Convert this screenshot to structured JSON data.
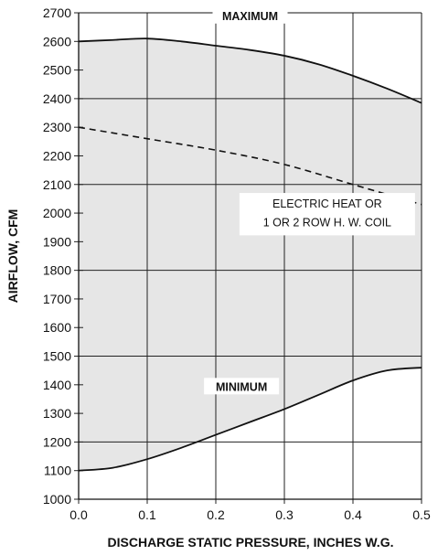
{
  "chart_data": {
    "type": "area",
    "title": "",
    "xlabel": "DISCHARGE STATIC PRESSURE, INCHES W.G.",
    "ylabel": "AIRFLOW, CFM",
    "xlim": [
      0,
      0.5
    ],
    "ylim": [
      1000,
      2700
    ],
    "grid": true,
    "x_ticks": [
      "0.0",
      "0.1",
      "0.2",
      "0.3",
      "0.4",
      "0.5"
    ],
    "y_ticks": [
      "1000",
      "1100",
      "1200",
      "1300",
      "1400",
      "1500",
      "1600",
      "1700",
      "1800",
      "1900",
      "2000",
      "2100",
      "2200",
      "2300",
      "2400",
      "2500",
      "2600",
      "2700"
    ],
    "shade_color": "#e6e6e6",
    "series": [
      {
        "name": "MAXIMUM",
        "style": "solid",
        "points": [
          [
            0.0,
            2600
          ],
          [
            0.05,
            2605
          ],
          [
            0.1,
            2610
          ],
          [
            0.15,
            2600
          ],
          [
            0.2,
            2585
          ],
          [
            0.25,
            2570
          ],
          [
            0.3,
            2550
          ],
          [
            0.35,
            2520
          ],
          [
            0.4,
            2480
          ],
          [
            0.45,
            2435
          ],
          [
            0.5,
            2385
          ]
        ]
      },
      {
        "name": "ELECTRIC HEAT OR 1 OR 2 ROW H. W. COIL",
        "style": "dashed",
        "points": [
          [
            0.0,
            2300
          ],
          [
            0.1,
            2260
          ],
          [
            0.2,
            2220
          ],
          [
            0.3,
            2170
          ],
          [
            0.4,
            2100
          ],
          [
            0.5,
            2030
          ]
        ]
      },
      {
        "name": "MINIMUM",
        "style": "solid",
        "points": [
          [
            0.0,
            1100
          ],
          [
            0.05,
            1110
          ],
          [
            0.1,
            1140
          ],
          [
            0.15,
            1180
          ],
          [
            0.2,
            1225
          ],
          [
            0.25,
            1270
          ],
          [
            0.3,
            1315
          ],
          [
            0.35,
            1365
          ],
          [
            0.4,
            1415
          ],
          [
            0.45,
            1450
          ],
          [
            0.5,
            1460
          ]
        ]
      }
    ],
    "annotations": {
      "maximum": "MAXIMUM",
      "minimum": "MINIMUM",
      "electric_line1": "ELECTRIC HEAT OR",
      "electric_line2": "1 OR 2 ROW  H. W. COIL"
    }
  }
}
